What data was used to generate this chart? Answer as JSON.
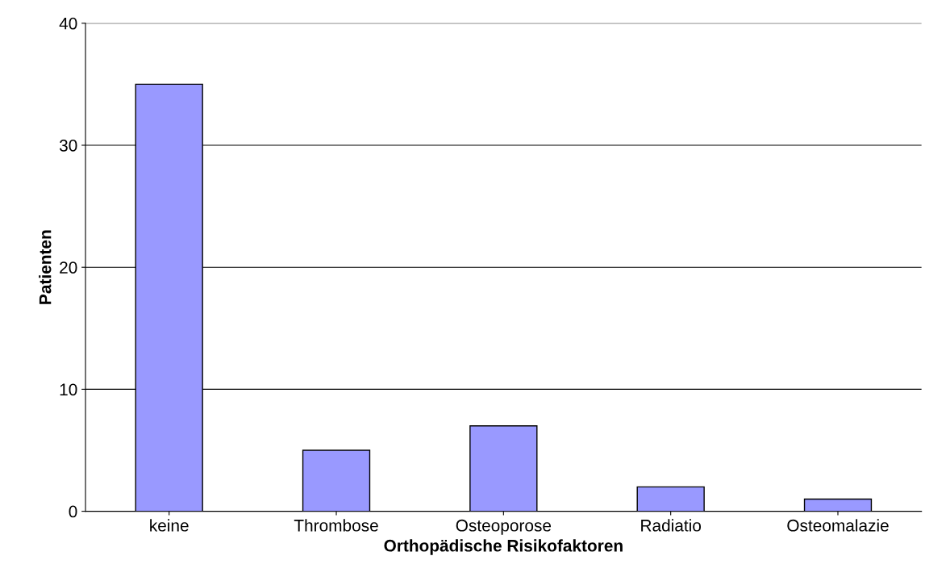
{
  "chart_data": {
    "type": "bar",
    "xlabel": "Orthopädische Risikofaktoren",
    "ylabel": "Patienten",
    "categories": [
      "keine",
      "Thrombose",
      "Osteoporose",
      "Radiatio",
      "Osteomalazie"
    ],
    "values": [
      35,
      5,
      7,
      2,
      1
    ],
    "color": "#9999ff",
    "ylim": [
      0,
      40
    ],
    "yticks": [
      0,
      10,
      20,
      30,
      40
    ],
    "grid": "y"
  }
}
